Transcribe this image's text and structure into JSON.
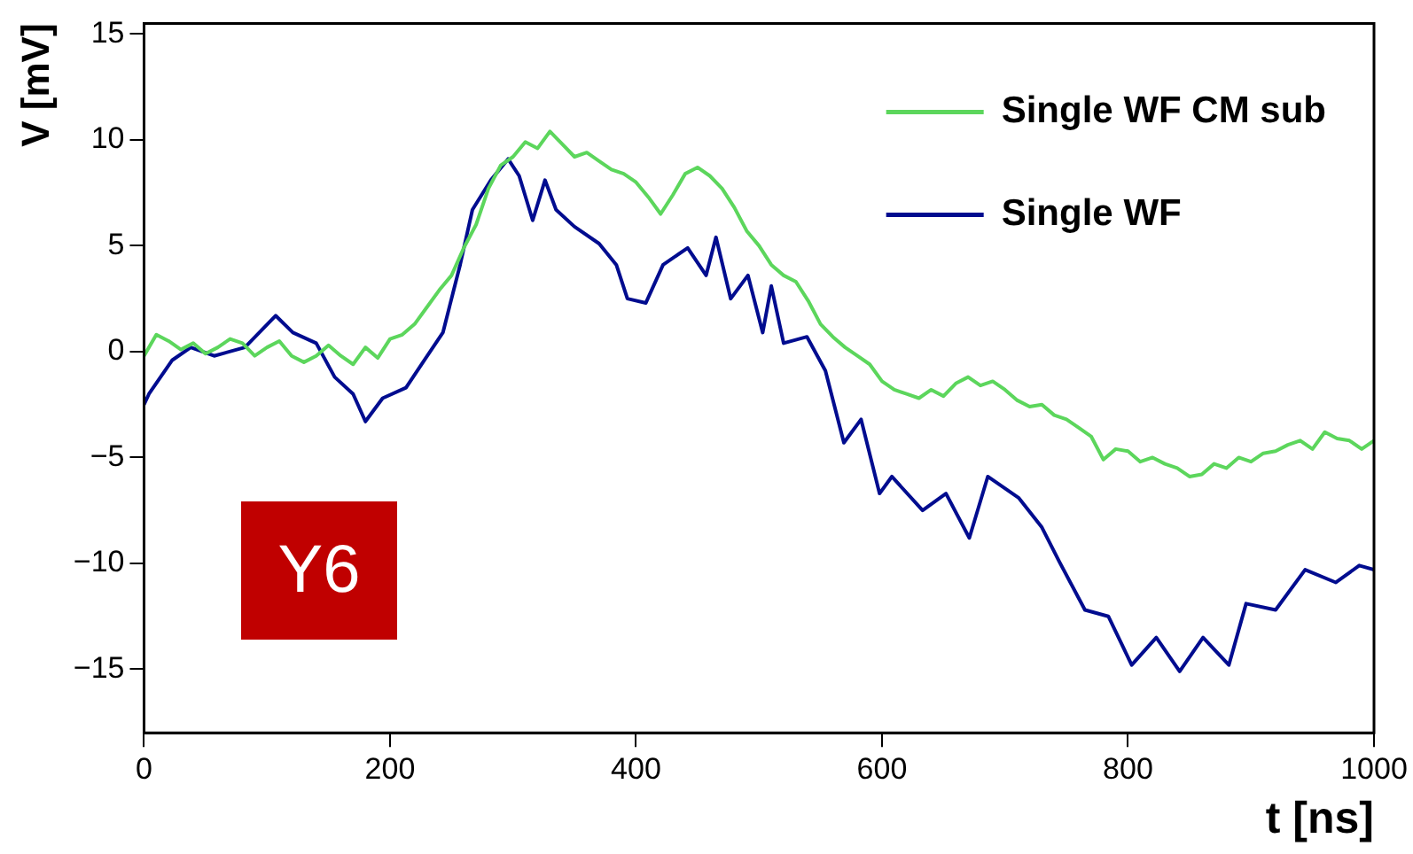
{
  "chart_data": {
    "type": "line",
    "xlabel": "t [ns]",
    "ylabel": "V [mV]",
    "xlim": [
      0,
      1000
    ],
    "ylim": [
      -18,
      15.5
    ],
    "xticks": [
      0,
      200,
      400,
      600,
      800,
      1000
    ],
    "yticks": [
      -15,
      -10,
      -5,
      0,
      5,
      10,
      15
    ],
    "grid": false,
    "legend": "top right",
    "marker": "none",
    "line_style": "solid",
    "annotations": [
      "Y6"
    ],
    "series": [
      {
        "name": "Single WF CM sub",
        "color": "#5cd65c",
        "x": [
          0,
          10,
          20,
          30,
          40,
          50,
          60,
          70,
          80,
          90,
          100,
          110,
          120,
          130,
          140,
          150,
          160,
          170,
          180,
          190,
          200,
          210,
          220,
          230,
          240,
          250,
          260,
          270,
          280,
          290,
          300,
          310,
          320,
          330,
          340,
          350,
          360,
          370,
          380,
          390,
          400,
          410,
          420,
          430,
          440,
          450,
          460,
          470,
          480,
          490,
          500,
          510,
          520,
          530,
          540,
          550,
          560,
          570,
          580,
          590,
          600,
          610,
          620,
          630,
          640,
          650,
          660,
          670,
          680,
          690,
          700,
          710,
          720,
          730,
          740,
          750,
          760,
          770,
          780,
          790,
          800,
          810,
          820,
          830,
          840,
          850,
          860,
          870,
          880,
          890,
          900,
          910,
          920,
          930,
          940,
          950,
          960,
          970,
          980,
          990,
          1000
        ],
        "values": [
          -0.2,
          0.8,
          0.5,
          0.1,
          0.4,
          -0.1,
          0.2,
          0.6,
          0.4,
          -0.2,
          0.2,
          0.5,
          -0.2,
          -0.5,
          -0.2,
          0.3,
          -0.2,
          -0.6,
          0.2,
          -0.3,
          0.6,
          0.8,
          1.3,
          2.1,
          2.9,
          3.6,
          4.9,
          6.0,
          7.7,
          8.8,
          9.2,
          9.9,
          9.6,
          10.4,
          9.8,
          9.2,
          9.4,
          9.0,
          8.6,
          8.4,
          8.0,
          7.3,
          6.5,
          7.4,
          8.4,
          8.7,
          8.3,
          7.7,
          6.8,
          5.7,
          5.0,
          4.1,
          3.6,
          3.3,
          2.4,
          1.3,
          0.7,
          0.2,
          -0.2,
          -0.6,
          -1.4,
          -1.8,
          -2.0,
          -2.2,
          -1.8,
          -2.1,
          -1.5,
          -1.2,
          -1.6,
          -1.4,
          -1.8,
          -2.3,
          -2.6,
          -2.5,
          -3.0,
          -3.2,
          -3.6,
          -4.0,
          -5.1,
          -4.6,
          -4.7,
          -5.2,
          -5.0,
          -5.3,
          -5.5,
          -5.9,
          -5.8,
          -5.3,
          -5.5,
          -5.0,
          -5.2,
          -4.8,
          -4.7,
          -4.4,
          -4.2,
          -4.6,
          -3.8,
          -4.1,
          -4.2,
          -4.6,
          -4.2
        ]
      },
      {
        "name": "Single WF",
        "color": "#000c8f",
        "x": [
          0,
          4,
          23,
          38,
          57,
          82,
          107,
          121,
          140,
          155,
          170,
          180,
          194,
          213,
          228,
          243,
          257,
          267,
          282,
          296,
          305,
          316,
          326,
          335,
          350,
          370,
          384,
          393,
          408,
          422,
          442,
          457,
          465,
          477,
          491,
          503,
          510,
          520,
          539,
          554,
          569,
          583,
          598,
          608,
          633,
          652,
          671,
          686,
          711,
          730,
          744,
          765,
          784,
          803,
          823,
          842,
          861,
          882,
          896,
          920,
          944,
          969,
          988,
          1000
        ],
        "values": [
          -2.5,
          -2.0,
          -0.4,
          0.2,
          -0.2,
          0.2,
          1.7,
          0.9,
          0.4,
          -1.2,
          -2.0,
          -3.3,
          -2.2,
          -1.7,
          -0.4,
          0.9,
          4.1,
          6.7,
          8.1,
          9.1,
          8.3,
          6.2,
          8.1,
          6.7,
          5.9,
          5.1,
          4.1,
          2.5,
          2.3,
          4.1,
          4.9,
          3.6,
          5.4,
          2.5,
          3.6,
          0.9,
          3.1,
          0.4,
          0.7,
          -0.9,
          -4.3,
          -3.2,
          -6.7,
          -5.9,
          -7.5,
          -6.7,
          -8.8,
          -5.9,
          -6.9,
          -8.3,
          -9.9,
          -12.2,
          -12.5,
          -14.8,
          -13.5,
          -15.1,
          -13.5,
          -14.8,
          -11.9,
          -12.2,
          -10.3,
          -10.9,
          -10.1,
          -10.3
        ]
      }
    ]
  }
}
